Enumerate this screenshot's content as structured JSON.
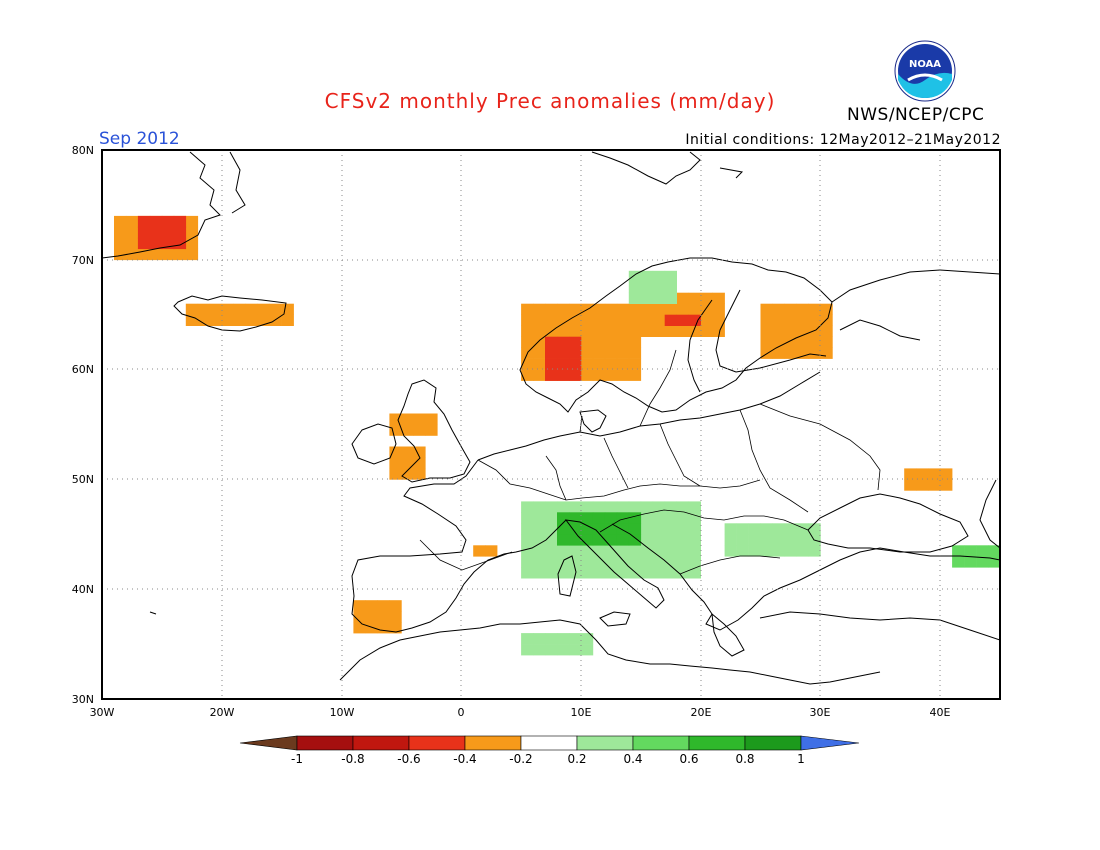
{
  "header": {
    "title": "CFSv2 monthly Prec anomalies (mm/day)",
    "month": "Sep 2012",
    "initial_conditions": "Initial conditions: 12May2012–21May2012",
    "org": "NWS/NCEP/CPC",
    "logo_text": "NOAA"
  },
  "map": {
    "lon_range": [
      -30,
      45
    ],
    "lat_range": [
      30,
      80
    ],
    "lat_labels": [
      "30N",
      "40N",
      "50N",
      "60N",
      "70N",
      "80N"
    ],
    "lon_labels": [
      "30W",
      "20W",
      "10W",
      "0",
      "10E",
      "20E",
      "30E",
      "40E"
    ],
    "grid": "dotted",
    "colors": {
      "-1": "#6b3a1e",
      "-0.8": "#a50f0f",
      "-0.6": "#e8321a",
      "-0.4": "#f79a1a",
      "-0.2": "#ffffff",
      "0.2": "#9ee89a",
      "0.4": "#63d95f",
      "0.6": "#2fb82b",
      "0.8": "#1c9a1c",
      "1": "#3f6fe6"
    },
    "anomaly_regions": [
      {
        "name": "Greenland east coast",
        "level": -0.4,
        "lon": [
          -29,
          -22
        ],
        "lat": [
          70,
          74
        ]
      },
      {
        "name": "Greenland east coast core",
        "level": -0.6,
        "lon": [
          -27,
          -23
        ],
        "lat": [
          71,
          73.5
        ]
      },
      {
        "name": "Iceland",
        "level": -0.4,
        "lon": [
          -23,
          -14
        ],
        "lat": [
          64,
          66
        ]
      },
      {
        "name": "Norway coast",
        "level": -0.4,
        "lon": [
          5,
          15
        ],
        "lat": [
          59,
          66
        ]
      },
      {
        "name": "Norway coast core",
        "level": -0.6,
        "lon": [
          7,
          10
        ],
        "lat": [
          59,
          63
        ]
      },
      {
        "name": "Northern Sweden",
        "level": -0.4,
        "lon": [
          15,
          22
        ],
        "lat": [
          63,
          67
        ]
      },
      {
        "name": "Northern Sweden core",
        "level": -0.6,
        "lon": [
          17,
          20
        ],
        "lat": [
          64,
          65
        ]
      },
      {
        "name": "Finland",
        "level": -0.4,
        "lon": [
          25,
          31
        ],
        "lat": [
          61,
          66
        ]
      },
      {
        "name": "Scotland",
        "level": -0.4,
        "lon": [
          -6,
          -2
        ],
        "lat": [
          54,
          56
        ]
      },
      {
        "name": "Ireland / Wales",
        "level": -0.4,
        "lon": [
          -6,
          -3
        ],
        "lat": [
          50,
          53
        ]
      },
      {
        "name": "Iberia",
        "level": -0.4,
        "lon": [
          -9,
          -5
        ],
        "lat": [
          36,
          39
        ]
      },
      {
        "name": "Pyrenees",
        "level": -0.4,
        "lon": [
          1,
          3
        ],
        "lat": [
          43,
          44
        ]
      },
      {
        "name": "Russia",
        "level": -0.4,
        "lon": [
          37,
          41
        ],
        "lat": [
          49,
          51
        ]
      },
      {
        "name": "Alps",
        "level": 0.2,
        "lon": [
          5,
          20
        ],
        "lat": [
          41,
          48
        ]
      },
      {
        "name": "Alps core",
        "level": 0.6,
        "lon": [
          8,
          15
        ],
        "lat": [
          44,
          47
        ]
      },
      {
        "name": "Balkans / Romania",
        "level": 0.2,
        "lon": [
          22,
          30
        ],
        "lat": [
          43,
          46
        ]
      },
      {
        "name": "North Africa",
        "level": 0.2,
        "lon": [
          5,
          11
        ],
        "lat": [
          34,
          36
        ]
      },
      {
        "name": "Southern Norway",
        "level": 0.2,
        "lon": [
          14,
          18
        ],
        "lat": [
          66,
          69
        ]
      },
      {
        "name": "Black Sea / Caucasus",
        "level": 0.4,
        "lon": [
          41,
          45
        ],
        "lat": [
          42,
          44
        ]
      }
    ]
  },
  "colorbar": {
    "tick_labels": [
      "-1",
      "-0.8",
      "-0.6",
      "-0.4",
      "-0.2",
      "0.2",
      "0.4",
      "0.6",
      "0.8",
      "1"
    ],
    "bins": [
      "#6b3a1e",
      "#a50f0f",
      "#c0170f",
      "#e8321a",
      "#f79a1a",
      "#ffffff",
      "#9ee89a",
      "#63d95f",
      "#2fb82b",
      "#1c9a1c",
      "#3f6fe6"
    ]
  }
}
